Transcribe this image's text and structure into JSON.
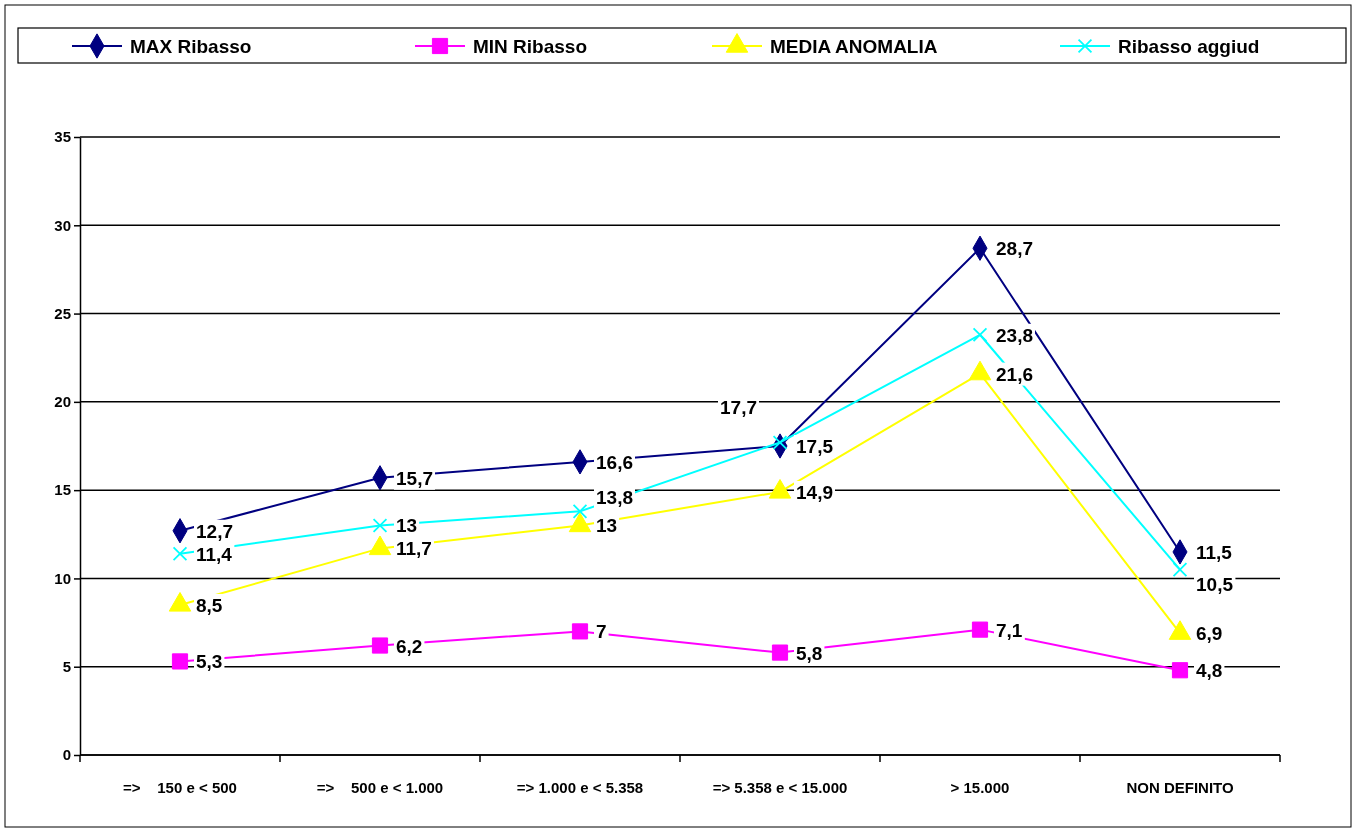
{
  "chart_data": {
    "type": "line",
    "categories": [
      "=>    150 e < 500",
      "=>    500 e < 1.000",
      "=> 1.000 e < 5.358",
      "=> 5.358 e < 15.000",
      "> 15.000",
      "NON DEFINITO"
    ],
    "ylim": [
      0,
      35
    ],
    "yticks": [
      0,
      5,
      10,
      15,
      20,
      25,
      30,
      35
    ],
    "grid": "y",
    "legend": "top",
    "series": [
      {
        "name": "MAX Ribasso",
        "color": "#000080",
        "marker": "diamond",
        "values": [
          12.7,
          15.7,
          16.6,
          17.5,
          28.7,
          11.5
        ],
        "value_labels": [
          "12,7",
          "15,7",
          "16,6",
          "17,5",
          "28,7",
          "11,5"
        ]
      },
      {
        "name": "MIN Ribasso",
        "color": "#ff00ff",
        "marker": "square",
        "values": [
          5.3,
          6.2,
          7,
          5.8,
          7.1,
          4.8
        ],
        "value_labels": [
          "5,3",
          "6,2",
          "7",
          "5,8",
          "7,1",
          "4,8"
        ]
      },
      {
        "name": "MEDIA ANOMALIA",
        "color": "#ffff00",
        "marker": "triangle",
        "values": [
          8.5,
          11.7,
          13,
          14.9,
          21.6,
          6.9
        ],
        "value_labels": [
          "8,5",
          "11,7",
          "13",
          "14,9",
          "21,6",
          "6,9"
        ]
      },
      {
        "name": "Ribasso aggiud",
        "color": "#00ffff",
        "marker": "cross",
        "values": [
          11.4,
          13,
          13.8,
          17.7,
          23.8,
          10.5
        ],
        "value_labels": [
          "11,4",
          "13",
          "13,8",
          "17,7",
          "23,8",
          "10,5"
        ]
      }
    ]
  }
}
